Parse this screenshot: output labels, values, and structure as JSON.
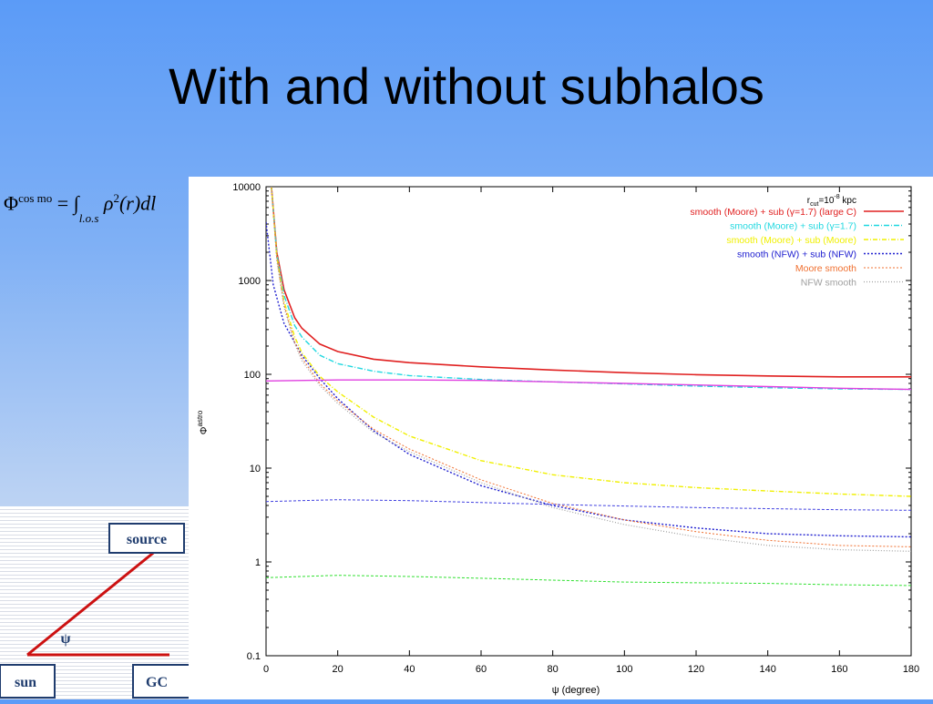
{
  "slide": {
    "title": "With and without subhalos"
  },
  "formula": {
    "lhs": "Φ",
    "lhs_sup": "cos mo",
    "eq": "= ∫",
    "sub": "l.o.s",
    "rho": "ρ",
    "rho_sup": "2",
    "rest": "(r)dl"
  },
  "diagram": {
    "source_label": "source",
    "sun_label": "sun",
    "gc_label": "GC",
    "angle_label": "ψ",
    "line_color": "#cc1111",
    "box_color": "#1f3c6e"
  },
  "chart_data": {
    "type": "line",
    "xlabel": "ψ (degree)",
    "ylabel": "Φ",
    "ylabel_sup": "astro",
    "xlim": [
      0,
      180
    ],
    "ylim": [
      0.1,
      10000
    ],
    "yscale": "log",
    "xticks": [
      0,
      20,
      40,
      60,
      80,
      100,
      120,
      140,
      160,
      180
    ],
    "yticks": [
      0.1,
      1,
      10,
      100,
      1000,
      10000
    ],
    "ytick_labels": [
      "0.1",
      "1",
      "10",
      "100",
      "1000",
      "10000"
    ],
    "legend_position": "top-right",
    "legend_header": "r",
    "legend_header_sub": "cut",
    "legend_header_rest": "=10",
    "legend_header_sup": "-8",
    "legend_header_unit": " kpc",
    "series": [
      {
        "name": "smooth (Moore) + sub (γ=1.7) (large C)",
        "color": "#e02020",
        "dash": "",
        "width": 1.6,
        "legend": true,
        "x": [
          1.5,
          3,
          5,
          8,
          10,
          15,
          20,
          30,
          40,
          60,
          80,
          100,
          120,
          140,
          160,
          180
        ],
        "y": [
          10000,
          2000,
          800,
          400,
          310,
          210,
          175,
          145,
          133,
          120,
          111,
          104,
          99,
          96,
          94,
          94
        ]
      },
      {
        "name": "smooth (Moore) + sub (γ=1.7)",
        "color": "#20d8e0",
        "dash": "6,2,1,2",
        "width": 1.4,
        "legend": true,
        "x": [
          1.5,
          3,
          5,
          8,
          10,
          15,
          20,
          30,
          40,
          60,
          80,
          100,
          120,
          140,
          160,
          180
        ],
        "y": [
          10000,
          1900,
          700,
          330,
          250,
          160,
          130,
          108,
          97,
          88,
          83,
          79,
          75,
          72,
          70,
          69
        ]
      },
      {
        "name": "smooth (Moore) + sub (Moore)",
        "color": "#f0f000",
        "dash": "5,2,1,2",
        "width": 1.4,
        "legend": true,
        "x": [
          1.5,
          3,
          5,
          8,
          10,
          15,
          20,
          30,
          40,
          60,
          80,
          100,
          120,
          140,
          160,
          180
        ],
        "y": [
          10000,
          1800,
          600,
          250,
          170,
          95,
          65,
          35,
          22,
          12,
          8.5,
          7,
          6.2,
          5.7,
          5.3,
          5.0
        ]
      },
      {
        "name": "smooth (NFW) + sub (NFW)",
        "color": "#2020d0",
        "dash": "2,2",
        "width": 1.4,
        "legend": true,
        "x": [
          0,
          2,
          5,
          10,
          15,
          20,
          30,
          40,
          60,
          80,
          100,
          120,
          140,
          160,
          180
        ],
        "y": [
          4200,
          900,
          350,
          160,
          90,
          55,
          25,
          14,
          6.5,
          4,
          2.8,
          2.3,
          2.0,
          1.9,
          1.85
        ]
      },
      {
        "name": "Moore smooth",
        "color": "#f07030",
        "dash": "2,2",
        "width": 1.0,
        "legend": true,
        "x": [
          1.5,
          3,
          5,
          8,
          10,
          15,
          20,
          30,
          40,
          60,
          80,
          100,
          120,
          140,
          160,
          180
        ],
        "y": [
          10000,
          1700,
          550,
          220,
          150,
          80,
          52,
          26,
          16,
          7.5,
          4.2,
          2.8,
          2.1,
          1.7,
          1.5,
          1.45
        ]
      },
      {
        "name": "NFW smooth",
        "color": "#a0a0a0",
        "dash": "1,2",
        "width": 1.2,
        "legend": true,
        "x": [
          1.5,
          3,
          5,
          8,
          10,
          15,
          20,
          30,
          40,
          60,
          80,
          100,
          120,
          140,
          160,
          180
        ],
        "y": [
          10000,
          1650,
          520,
          210,
          140,
          76,
          49,
          24,
          15,
          7,
          3.8,
          2.5,
          1.85,
          1.5,
          1.35,
          1.3
        ]
      },
      {
        "name": "",
        "color": "#e040e0",
        "dash": "",
        "width": 1.4,
        "legend": false,
        "x": [
          0,
          20,
          40,
          60,
          80,
          100,
          120,
          140,
          160,
          180
        ],
        "y": [
          85,
          87,
          87,
          86,
          83,
          80,
          77,
          74,
          71,
          69
        ]
      },
      {
        "name": "",
        "color": "#4040e0",
        "dash": "3,2",
        "width": 1.0,
        "legend": false,
        "x": [
          0,
          20,
          40,
          60,
          80,
          100,
          120,
          140,
          160,
          180
        ],
        "y": [
          4.4,
          4.6,
          4.5,
          4.3,
          4.1,
          3.95,
          3.8,
          3.7,
          3.6,
          3.55
        ]
      },
      {
        "name": "",
        "color": "#30e030",
        "dash": "3,2",
        "width": 1.0,
        "legend": false,
        "x": [
          0,
          20,
          40,
          60,
          80,
          100,
          120,
          140,
          160,
          180
        ],
        "y": [
          0.68,
          0.72,
          0.7,
          0.67,
          0.64,
          0.61,
          0.6,
          0.59,
          0.57,
          0.56
        ]
      }
    ]
  }
}
